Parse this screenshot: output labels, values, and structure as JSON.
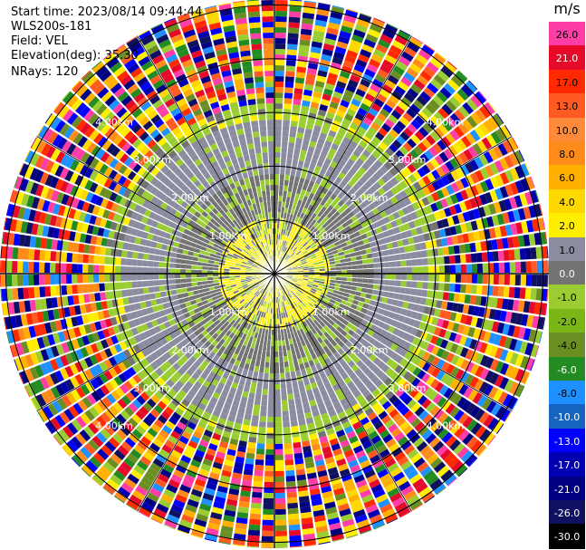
{
  "header": {
    "start_time": "Start time: 2023/08/14 09:44:44",
    "instrument": "WLS200s-181",
    "field": "Field: VEL",
    "elevation": "Elevation(deg): 35.30",
    "nrays": "NRays: 120"
  },
  "colorbar": {
    "unit": "m/s",
    "labels": [
      "26.0",
      "21.0",
      "17.0",
      "13.0",
      "10.0",
      "8.0",
      "6.0",
      "4.0",
      "2.0",
      "1.0",
      "0.0",
      "-1.0",
      "-2.0",
      "-4.0",
      "-6.0",
      "-8.0",
      "-10.0",
      "-13.0",
      "-17.0",
      "-21.0",
      "-26.0",
      "-30.0"
    ],
    "colors": [
      "#ff3da6",
      "#e60a2a",
      "#ff2a00",
      "#ff5a22",
      "#ff8a3a",
      "#ff8c1a",
      "#ffb000",
      "#ffd800",
      "#ffee00",
      "#8c8ca0",
      "#737373",
      "#9acd32",
      "#7cb518",
      "#6b8e23",
      "#228b22",
      "#1e90ff",
      "#1565c0",
      "#0000ff",
      "#0000b0",
      "#000080",
      "#101060",
      "#000000"
    ]
  },
  "chart_data": {
    "type": "ppi",
    "field": "VEL",
    "units": "m/s",
    "nrays": 120,
    "range_labels": [
      "1.00km",
      "2.00km",
      "3.00km",
      "4.00km"
    ],
    "near_field_velocity": [
      -2.0,
      4.0
    ]
  }
}
